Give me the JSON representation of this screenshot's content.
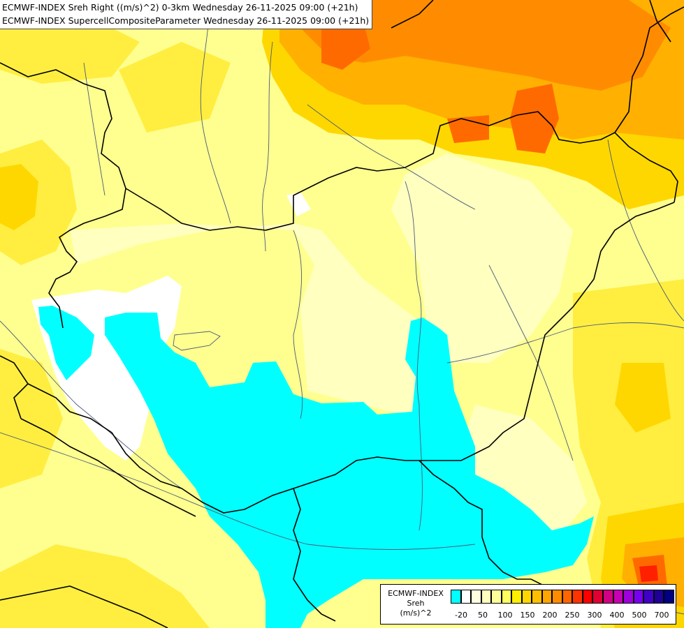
{
  "header": {
    "line1": "ECMWF-INDEX Sreh Right ((m/s)^2) 0-3km Wednesday 26-11-2025 09:00 (+21h)",
    "line2": "ECMWF-INDEX SupercellCompositeParameter Wednesday 26-11-2025 09:00 (+21h)"
  },
  "legend": {
    "title_line1": "ECMWF-INDEX",
    "title_line2": "Sreh",
    "title_line3": "(m/s)^2",
    "colors": [
      "#00ffff",
      "#ffffff",
      "#ffffe0",
      "#ffffbe",
      "#ffff9a",
      "#ffff60",
      "#ffef00",
      "#ffd700",
      "#ffbf00",
      "#ffa500",
      "#ff8c00",
      "#ff6600",
      "#ff3300",
      "#ff0000",
      "#e00032",
      "#d20082",
      "#c800b4",
      "#a000dc",
      "#7800f0",
      "#4000c8",
      "#1e0096",
      "#000080"
    ],
    "labels": [
      "-20",
      "50",
      "100",
      "150",
      "200",
      "250",
      "300",
      "400",
      "500",
      "700"
    ]
  },
  "palette": {
    "cyan": "#00ffff",
    "white": "#ffffff",
    "pale_yellow": "#ffffc0",
    "light_yellow": "#ffff90",
    "yellow": "#ffee40",
    "gold": "#ffd700",
    "light_orange": "#ffb000",
    "orange": "#ff8c00",
    "dark_orange": "#ff6a00",
    "red": "#ff2000",
    "border": "#000000",
    "river": "#4a5a78"
  }
}
